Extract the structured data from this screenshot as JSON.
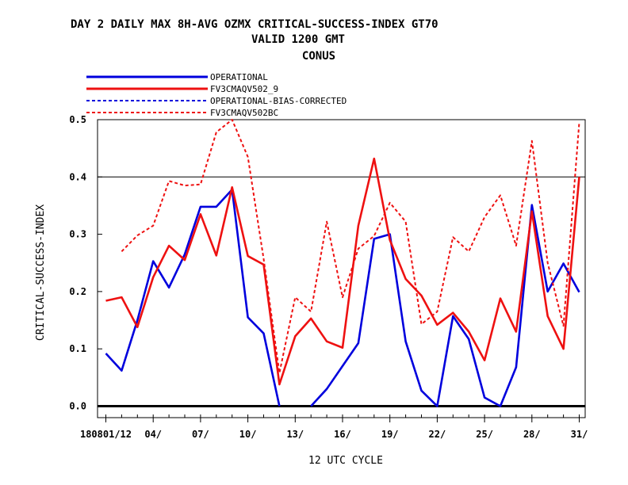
{
  "titles": {
    "line1": "DAY 2 DAILY MAX   8H-AVG OZMX CRITICAL-SUCCESS-INDEX GT70",
    "line2": "VALID 1200 GMT",
    "line3": "CONUS"
  },
  "colors": {
    "operational": "#0000dd",
    "fv3": "#ee1111"
  },
  "chart_data": {
    "type": "line",
    "xlabel": "12 UTC CYCLE",
    "ylabel": "CRITICAL-SUCCESS-INDEX",
    "ylim": [
      0,
      0.5
    ],
    "xlim": [
      0.5,
      31.5
    ],
    "yticks": [
      "0.0",
      "0.1",
      "0.2",
      "0.3",
      "0.4",
      "0.5"
    ],
    "ytick_values": [
      0,
      0.1,
      0.2,
      0.3,
      0.4,
      0.5
    ],
    "xticks": [
      {
        "x": 1,
        "label": "180801/12"
      },
      {
        "x": 4,
        "label": "04/"
      },
      {
        "x": 7,
        "label": "07/"
      },
      {
        "x": 10,
        "label": "10/"
      },
      {
        "x": 13,
        "label": "13/"
      },
      {
        "x": 16,
        "label": "16/"
      },
      {
        "x": 19,
        "label": "19/"
      },
      {
        "x": 22,
        "label": "22/"
      },
      {
        "x": 25,
        "label": "25/"
      },
      {
        "x": 28,
        "label": "28/"
      },
      {
        "x": 31,
        "label": "31/"
      }
    ],
    "reference_lines": [
      0,
      0.4
    ],
    "legend_placement": "top-left",
    "series": [
      {
        "name": "OPERATIONAL",
        "style": "solid",
        "color": "#0000dd",
        "x": [
          1,
          2,
          3,
          4,
          5,
          6,
          7,
          8,
          9,
          10,
          11,
          12,
          13,
          14,
          15,
          16,
          17,
          18,
          19,
          20,
          21,
          22,
          23,
          24,
          25,
          26,
          27,
          28,
          29,
          30,
          31
        ],
        "values": [
          0.092,
          0.062,
          0.15,
          0.253,
          0.207,
          0.265,
          0.348,
          0.348,
          0.378,
          0.155,
          0.127,
          0.0,
          null,
          0.0,
          0.03,
          0.07,
          0.11,
          0.292,
          0.3,
          0.113,
          0.027,
          0.0,
          0.157,
          0.117,
          0.015,
          0.0,
          0.068,
          0.351,
          0.2,
          0.249,
          0.199
        ]
      },
      {
        "name": "FV3CMAQV502_9",
        "style": "solid",
        "color": "#ee1111",
        "x": [
          1,
          2,
          3,
          4,
          5,
          6,
          7,
          8,
          9,
          10,
          11,
          12,
          13,
          14,
          15,
          16,
          17,
          18,
          19,
          20,
          21,
          22,
          23,
          24,
          25,
          26,
          27,
          28,
          29,
          30,
          31
        ],
        "values": [
          0.184,
          0.19,
          0.138,
          0.225,
          0.28,
          0.255,
          0.335,
          0.263,
          0.382,
          0.262,
          0.247,
          0.038,
          0.122,
          0.153,
          0.113,
          0.102,
          0.315,
          0.432,
          0.29,
          0.222,
          0.193,
          0.142,
          0.163,
          0.13,
          0.08,
          0.188,
          0.13,
          0.34,
          0.157,
          0.1,
          0.4
        ]
      },
      {
        "name": "OPERATIONAL-BIAS-CORRECTED",
        "style": "dashed",
        "color": "#0000dd",
        "x": [],
        "values": []
      },
      {
        "name": "FV3CMAQV502BC",
        "style": "dashed",
        "color": "#ee1111",
        "x": [
          2,
          3,
          4,
          5,
          6,
          7,
          8,
          9,
          10,
          11,
          12,
          13,
          14,
          15,
          16,
          17,
          18,
          19,
          20,
          21,
          22,
          23,
          24,
          25,
          26,
          27,
          28,
          29,
          30,
          31
        ],
        "values": [
          0.27,
          0.298,
          0.315,
          0.393,
          0.385,
          0.387,
          0.478,
          0.5,
          0.435,
          0.257,
          0.058,
          0.19,
          0.165,
          0.322,
          0.19,
          0.275,
          0.297,
          0.355,
          0.322,
          0.143,
          0.165,
          0.295,
          0.27,
          0.33,
          0.368,
          0.28,
          0.463,
          0.25,
          0.14,
          0.495
        ]
      }
    ]
  }
}
